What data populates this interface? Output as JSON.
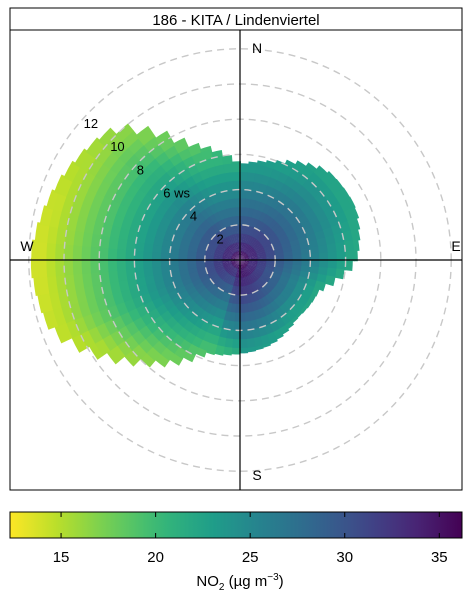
{
  "chart_data": {
    "type": "heatmap",
    "subtype": "polar-plot",
    "title": "186 - KITA / Lindenviertel",
    "directions": {
      "north": "N",
      "east": "E",
      "south": "S",
      "west": "W"
    },
    "radial_axis": {
      "unit_label": "ws",
      "ticks": [
        2,
        4,
        6,
        8,
        10,
        12
      ],
      "tick_labels": [
        "2",
        "4",
        "6 ws",
        "8",
        "10",
        "12"
      ],
      "max": 12,
      "grid": "dashed-circles"
    },
    "colorbar": {
      "label_main": "NO",
      "label_sub": "2",
      "label_unit_open": " (µg m",
      "label_sup": "−3",
      "label_unit_close": ")",
      "min": 12.3,
      "max": 36.2,
      "ticks": [
        15,
        20,
        25,
        30,
        35
      ],
      "tick_labels": [
        "15",
        "20",
        "25",
        "30",
        "35"
      ],
      "colormap": "viridis-reversed",
      "low_color": "#fde725",
      "high_color": "#440154"
    },
    "center_value": 36,
    "edge_value_west": 14,
    "edge_value_east": 22,
    "coverage_profile": [
      {
        "dir": 0,
        "ws": 5.4
      },
      {
        "dir": 20,
        "ws": 5.9
      },
      {
        "dir": 45,
        "ws": 7.1
      },
      {
        "dir": 65,
        "ws": 7.2
      },
      {
        "dir": 90,
        "ws": 6.6
      },
      {
        "dir": 110,
        "ws": 4.8
      },
      {
        "dir": 135,
        "ws": 4.6
      },
      {
        "dir": 160,
        "ws": 5.1
      },
      {
        "dir": 180,
        "ws": 5.3
      },
      {
        "dir": 200,
        "ws": 5.6
      },
      {
        "dir": 225,
        "ws": 8.2
      },
      {
        "dir": 250,
        "ws": 11.5
      },
      {
        "dir": 270,
        "ws": 11.9
      },
      {
        "dir": 290,
        "ws": 11.3
      },
      {
        "dir": 315,
        "ws": 10.4
      },
      {
        "dir": 335,
        "ws": 7.2
      },
      {
        "dir": 360,
        "ws": 5.4
      }
    ]
  }
}
